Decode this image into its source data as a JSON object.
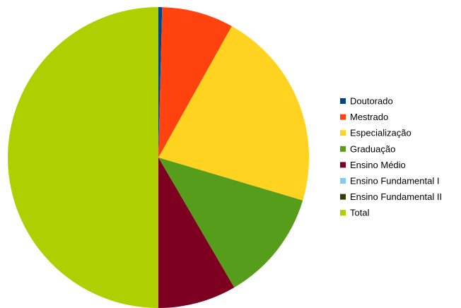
{
  "chart_data": {
    "type": "pie",
    "title": "",
    "slices": [
      {
        "label": "Doutorado",
        "value": 0.4,
        "color": "#004586"
      },
      {
        "label": "Mestrado",
        "value": 7.7,
        "color": "#ff420e"
      },
      {
        "label": "Especialização",
        "value": 21.5,
        "color": "#ffd320"
      },
      {
        "label": "Graduação",
        "value": 12.0,
        "color": "#579d1c"
      },
      {
        "label": "Ensino Médio",
        "value": 8.4,
        "color": "#7e0021"
      },
      {
        "label": "Ensino Fundamental I",
        "value": 0,
        "color": "#83caff"
      },
      {
        "label": "Ensino Fundamental II",
        "value": 0,
        "color": "#314004"
      },
      {
        "label": "Total",
        "value": 50.0,
        "color": "#aecf00"
      }
    ],
    "legend_position": "right",
    "start_angle": "12 o'clock, clockwise"
  }
}
